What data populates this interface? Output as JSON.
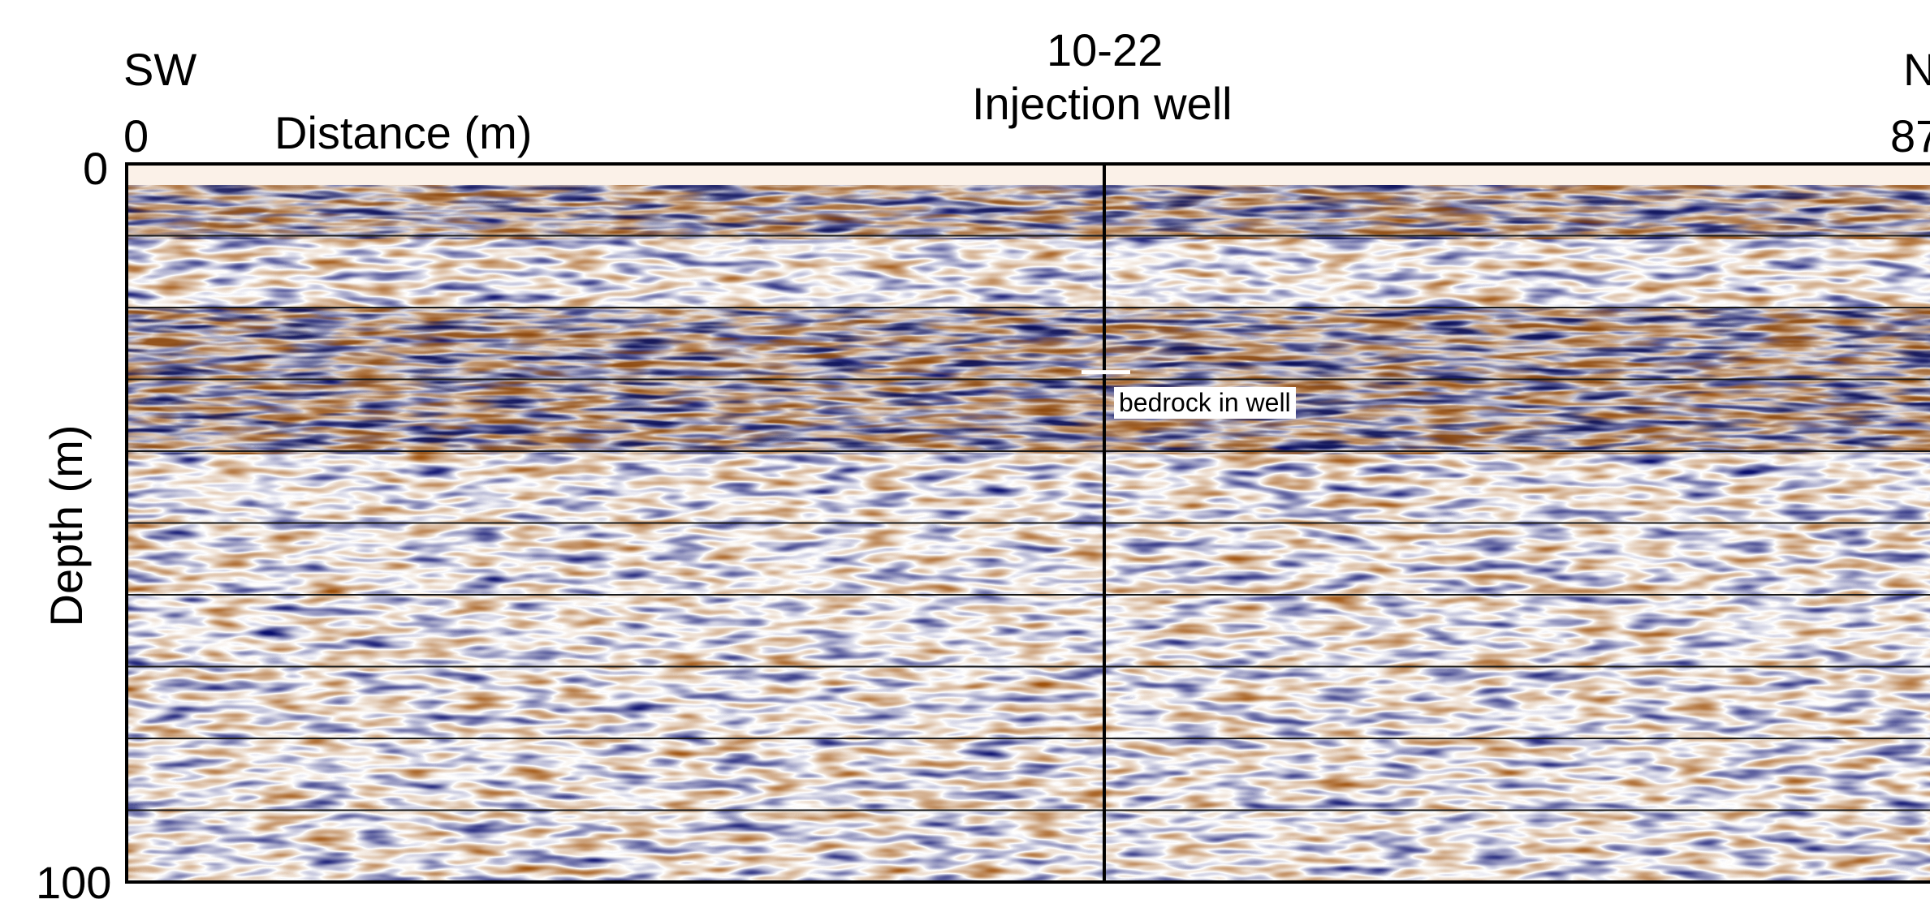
{
  "title": {
    "direction_left": "SW",
    "direction_right": "N",
    "well_number": "10-22",
    "well_name": "Injection well"
  },
  "axes": {
    "x_label": "Distance (m)",
    "x_start": "0",
    "x_end": "87",
    "y_label": "Depth (m)",
    "y_start": "0",
    "y_end": "100"
  },
  "annotation": {
    "bedrock_label": "bedrock in well",
    "bedrock_depth": 29
  },
  "profile": {
    "depth_range": [
      0,
      100
    ],
    "gridline_depths": [
      10,
      20,
      30,
      40,
      50,
      60,
      70,
      80,
      90
    ],
    "colors": {
      "positive": "#a0520c",
      "negative": "#0a0f6e",
      "neutral": "#ffffff",
      "frame": "#000000",
      "gridline": "#1a1a1a"
    }
  }
}
